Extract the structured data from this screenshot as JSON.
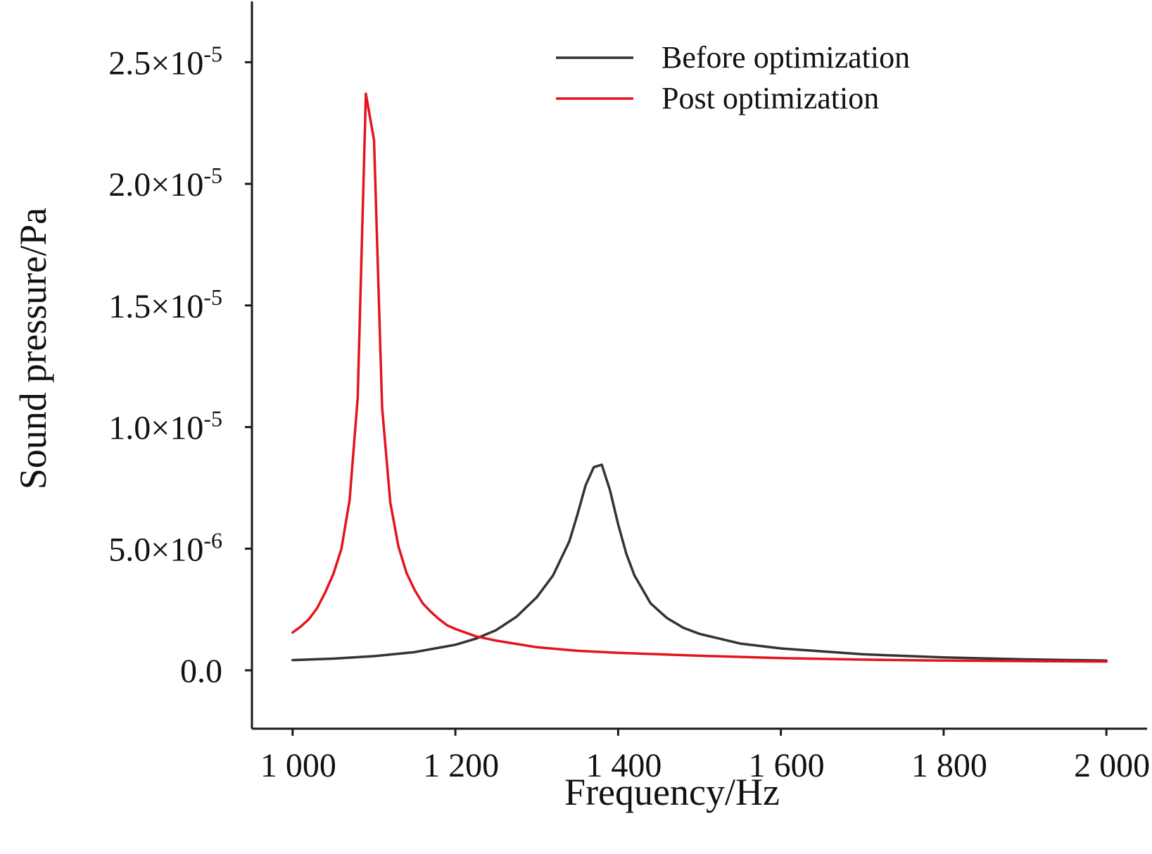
{
  "chart_data": {
    "type": "line",
    "title": "",
    "xlabel": "Frequency/Hz",
    "ylabel": "Sound pressure/Pa",
    "xlim": [
      950,
      2050
    ],
    "ylim": [
      -2.4e-06,
      2.75e-05
    ],
    "xticks": [
      {
        "value": 1000,
        "label": "1 000"
      },
      {
        "value": 1200,
        "label": "1 200"
      },
      {
        "value": 1400,
        "label": "1 400"
      },
      {
        "value": 1600,
        "label": "1 600"
      },
      {
        "value": 1800,
        "label": "1 800"
      },
      {
        "value": 2000,
        "label": "2 000"
      }
    ],
    "yticks": [
      {
        "value": 0.0,
        "mantissa": "0.0",
        "exp": ""
      },
      {
        "value": 5e-06,
        "mantissa": "5.0×10",
        "exp": "-6"
      },
      {
        "value": 1e-05,
        "mantissa": "1.0×10",
        "exp": "-5"
      },
      {
        "value": 1.5e-05,
        "mantissa": "1.5×10",
        "exp": "-5"
      },
      {
        "value": 2e-05,
        "mantissa": "2.0×10",
        "exp": "-5"
      },
      {
        "value": 2.5e-05,
        "mantissa": "2.5×10",
        "exp": "-5"
      }
    ],
    "grid": false,
    "legend_position": "top-right",
    "series": [
      {
        "name": "Before optimization",
        "color": "#333333",
        "x": [
          1000,
          1050,
          1100,
          1150,
          1200,
          1225,
          1250,
          1275,
          1300,
          1320,
          1340,
          1350,
          1360,
          1370,
          1380,
          1390,
          1400,
          1410,
          1420,
          1440,
          1460,
          1480,
          1500,
          1550,
          1600,
          1700,
          1800,
          1900,
          2000
        ],
        "y": [
          4.2e-07,
          4.8e-07,
          5.8e-07,
          7.5e-07,
          1.05e-06,
          1.3e-06,
          1.65e-06,
          2.2e-06,
          3e-06,
          3.9e-06,
          5.3e-06,
          6.4e-06,
          7.6e-06,
          8.35e-06,
          8.45e-06,
          7.4e-06,
          6e-06,
          4.8e-06,
          3.9e-06,
          2.75e-06,
          2.15e-06,
          1.75e-06,
          1.5e-06,
          1.1e-06,
          9e-07,
          6.6e-07,
          5.3e-07,
          4.5e-07,
          4e-07
        ]
      },
      {
        "name": "Post optimization",
        "color": "#e3141e",
        "x": [
          1000,
          1010,
          1020,
          1030,
          1040,
          1050,
          1060,
          1070,
          1080,
          1090,
          1100,
          1110,
          1120,
          1130,
          1140,
          1150,
          1160,
          1170,
          1180,
          1190,
          1200,
          1225,
          1250,
          1300,
          1350,
          1400,
          1500,
          1600,
          1700,
          1800,
          1900,
          2000
        ],
        "y": [
          1.55e-06,
          1.8e-06,
          2.1e-06,
          2.55e-06,
          3.2e-06,
          3.95e-06,
          5e-06,
          7e-06,
          1.12e-05,
          2.37e-05,
          2.18e-05,
          1.08e-05,
          6.9e-06,
          5.1e-06,
          4e-06,
          3.3e-06,
          2.75e-06,
          2.4e-06,
          2.1e-06,
          1.85e-06,
          1.7e-06,
          1.4e-06,
          1.22e-06,
          9.5e-07,
          8e-07,
          7.2e-07,
          6e-07,
          5e-07,
          4.4e-07,
          4e-07,
          3.8e-07,
          3.6e-07
        ]
      }
    ]
  }
}
